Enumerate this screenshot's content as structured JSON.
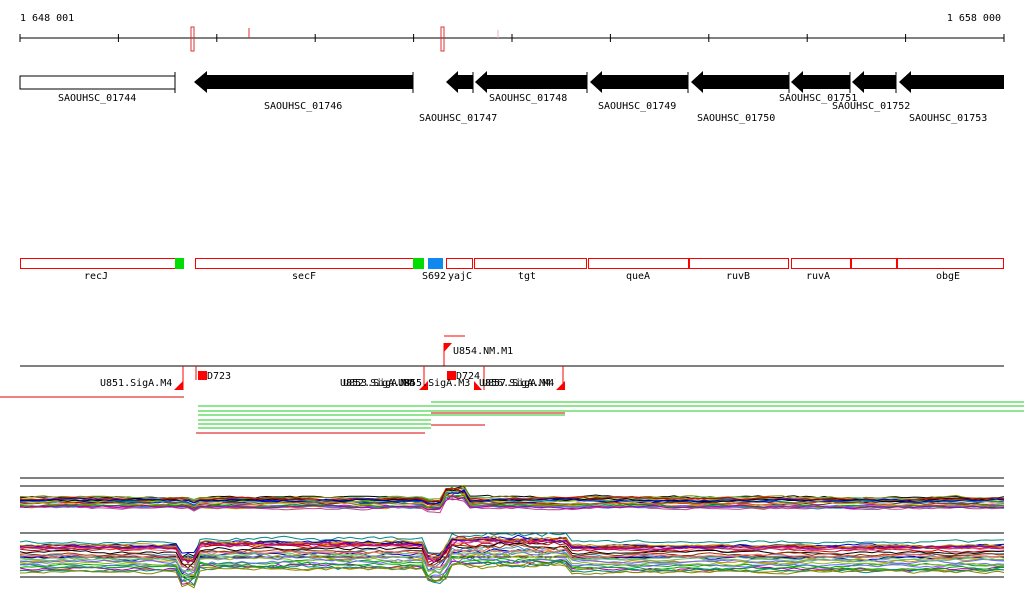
{
  "ruler": {
    "start_label": "1 648 001",
    "end_label": "1 658 000"
  },
  "genes": [
    {
      "label": "SAOUHSC_01744",
      "strand": "+",
      "filled": false
    },
    {
      "label": "SAOUHSC_01746",
      "strand": "-",
      "filled": true
    },
    {
      "label": "SAOUHSC_01747",
      "strand": "-",
      "filled": true
    },
    {
      "label": "SAOUHSC_01748",
      "strand": "-",
      "filled": true
    },
    {
      "label": "SAOUHSC_01749",
      "strand": "-",
      "filled": true
    },
    {
      "label": "SAOUHSC_01750",
      "strand": "-",
      "filled": true
    },
    {
      "label": "SAOUHSC_01751",
      "strand": "-",
      "filled": true
    },
    {
      "label": "SAOUHSC_01752",
      "strand": "-",
      "filled": true
    },
    {
      "label": "SAOUHSC_01753",
      "strand": "-",
      "filled": true
    }
  ],
  "regions": [
    {
      "label": "recJ"
    },
    {
      "label": "secF"
    },
    {
      "label": "S692"
    },
    {
      "label": "yajC"
    },
    {
      "label": "tgt"
    },
    {
      "label": "queA"
    },
    {
      "label": "ruvB"
    },
    {
      "label": "ruvA"
    },
    {
      "label": "obgE"
    }
  ],
  "features": [
    {
      "label": "U854.NM.M1"
    },
    {
      "label": "D723"
    },
    {
      "label": "D724"
    },
    {
      "label": "U851.SigA.M4"
    },
    {
      "label": "U852.SigA.M4"
    },
    {
      "label": "U853.SigA.M4"
    },
    {
      "label": "U855.SigA.M3"
    },
    {
      "label": "U856.SigA.M4"
    },
    {
      "label": "U857.SigA.M4"
    }
  ],
  "colors": {
    "gene": "#000000",
    "region_border": "#ff0000",
    "promoter": "#ff0000",
    "green_box": "#00dd00",
    "blue_box": "#1188ee",
    "line_green": "#22cc22",
    "line_red": "#dd0000"
  }
}
